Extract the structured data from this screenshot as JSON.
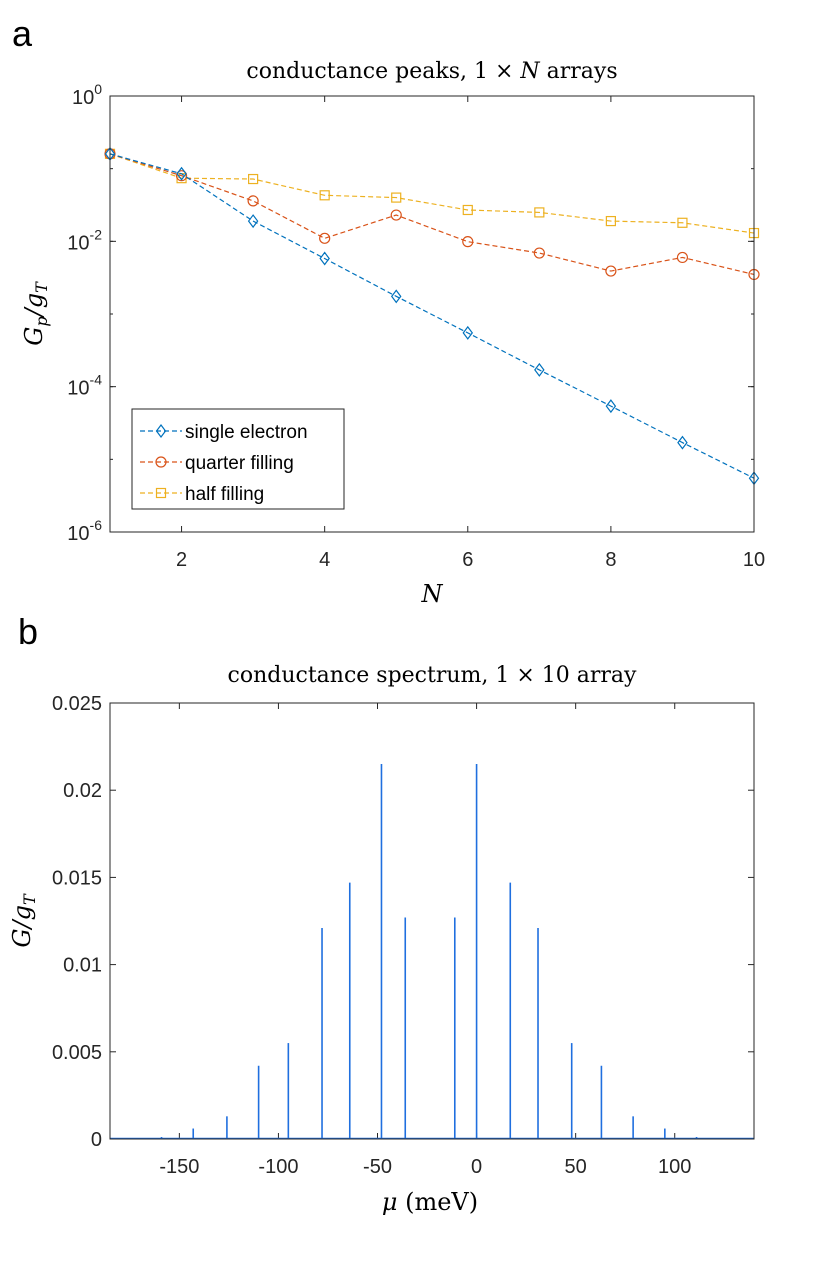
{
  "chart_data": [
    {
      "panel": "a",
      "type": "line",
      "title": "conductance peaks, 1 × N arrays",
      "xlabel": "N",
      "ylabel": "Gp/gT",
      "yscale": "log",
      "xlim": [
        1,
        10
      ],
      "ylim": [
        1e-06,
        1
      ],
      "xticks": [
        "2",
        "4",
        "6",
        "8",
        "10"
      ],
      "yticks": [
        {
          "value": 1,
          "base": "10",
          "exp": "0"
        },
        {
          "value": 0.01,
          "base": "10",
          "exp": "-2"
        },
        {
          "value": 0.0001,
          "base": "10",
          "exp": "-4"
        },
        {
          "value": 1e-06,
          "base": "10",
          "exp": "-6"
        }
      ],
      "legend_position": "bottom-left",
      "x": [
        1,
        2,
        3,
        4,
        5,
        6,
        7,
        8,
        9,
        10
      ],
      "series": [
        {
          "name": "single electron",
          "marker": "diamond",
          "color": "#0072BD",
          "values": [
            0.16,
            0.085,
            0.019,
            0.0058,
            0.00175,
            0.00055,
            0.00017,
            5.4e-05,
            1.7e-05,
            5.5e-06
          ]
        },
        {
          "name": "quarter filling",
          "marker": "circle",
          "color": "#D95319",
          "values": [
            0.16,
            0.08,
            0.036,
            0.011,
            0.023,
            0.0099,
            0.0069,
            0.0039,
            0.006,
            0.0035
          ]
        },
        {
          "name": "half filling",
          "marker": "square",
          "color": "#EDB120",
          "values": [
            0.16,
            0.074,
            0.072,
            0.043,
            0.04,
            0.027,
            0.025,
            0.019,
            0.018,
            0.013
          ]
        }
      ]
    },
    {
      "panel": "b",
      "type": "line",
      "title": "conductance spectrum, 1 × 10 array",
      "xlabel": "μ (meV)",
      "ylabel": "G/gT",
      "xlim": [
        -185,
        140
      ],
      "ylim": [
        0,
        0.025
      ],
      "xticks": [
        -150,
        -100,
        -50,
        0,
        50,
        100
      ],
      "yticks": [
        0,
        0.005,
        0.01,
        0.015,
        0.02,
        0.025
      ],
      "ytick_labels": [
        "0",
        "0.005",
        "0.01",
        "0.015",
        "0.02",
        "0.025"
      ],
      "color": "#1F6FDF",
      "peaks": [
        {
          "x": -159,
          "y": 5e-05
        },
        {
          "x": -143,
          "y": 0.0006
        },
        {
          "x": -126,
          "y": 0.0013
        },
        {
          "x": -110,
          "y": 0.0042
        },
        {
          "x": -95,
          "y": 0.0055
        },
        {
          "x": -78,
          "y": 0.0121
        },
        {
          "x": -64,
          "y": 0.0147
        },
        {
          "x": -48,
          "y": 0.0215
        },
        {
          "x": -36,
          "y": 0.0127
        },
        {
          "x": -11,
          "y": 0.0127
        },
        {
          "x": 0,
          "y": 0.0215
        },
        {
          "x": 17,
          "y": 0.0147
        },
        {
          "x": 31,
          "y": 0.0121
        },
        {
          "x": 48,
          "y": 0.0055
        },
        {
          "x": 63,
          "y": 0.0042
        },
        {
          "x": 79,
          "y": 0.0013
        },
        {
          "x": 95,
          "y": 0.0006
        },
        {
          "x": 111,
          "y": 5e-05
        }
      ]
    }
  ]
}
